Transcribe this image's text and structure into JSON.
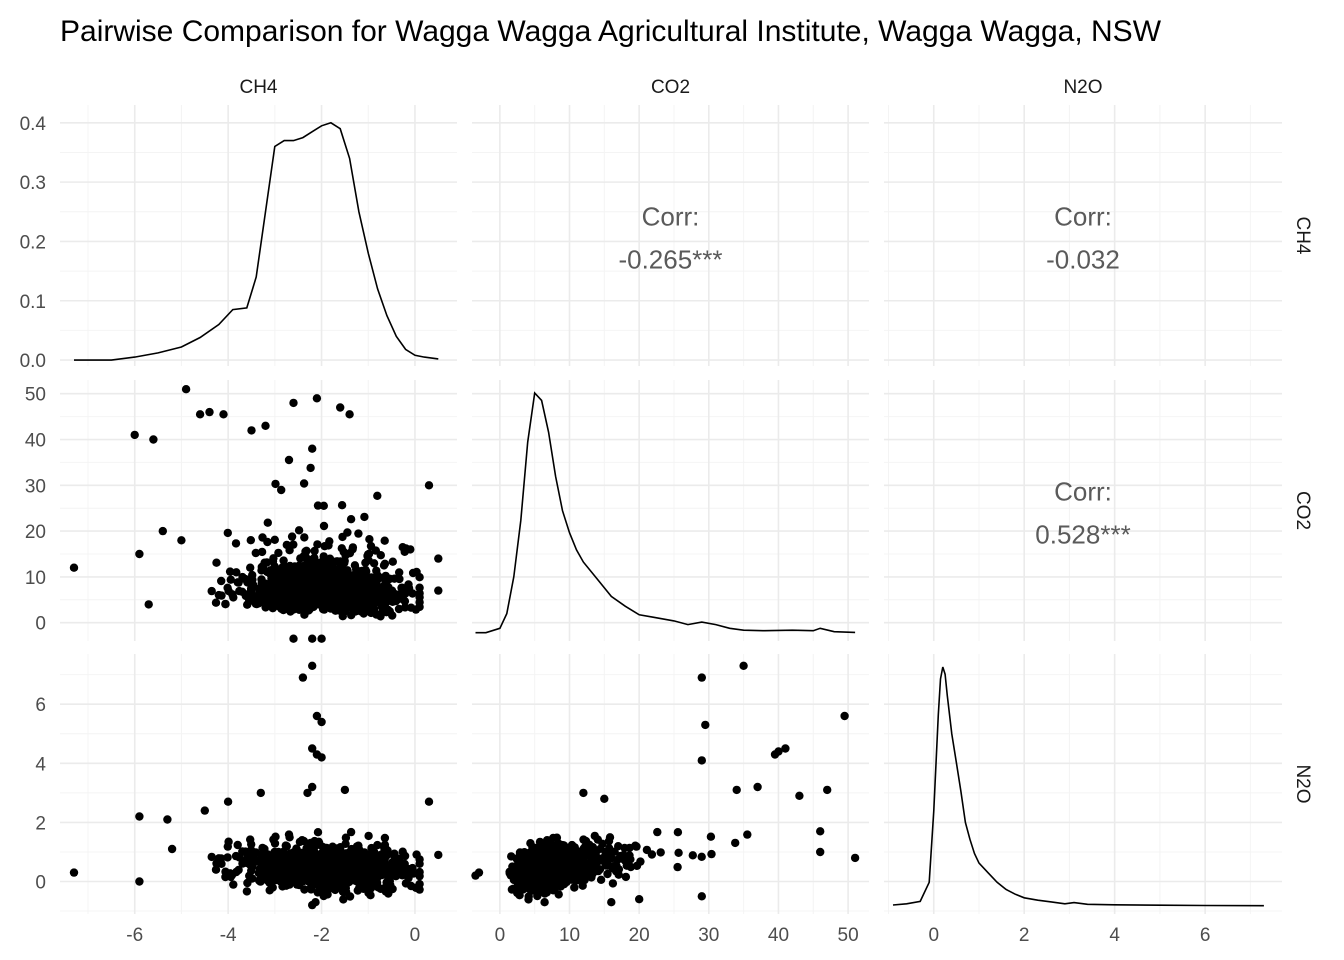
{
  "chart_data": {
    "type": "scatter",
    "title": "Pairwise Comparison for Wagga Wagga Agricultural Institute, Wagga Wagga, NSW",
    "variables": [
      "CH4",
      "CO2",
      "N2O"
    ],
    "axes": {
      "CH4": {
        "range": [
          -7.6,
          0.9
        ],
        "ticks": [
          -6,
          -4,
          -2,
          0
        ],
        "tick_labels": [
          "-6",
          "-4",
          "-2",
          "0"
        ]
      },
      "CO2": {
        "range": [
          -4,
          53
        ],
        "ticks": [
          0,
          10,
          20,
          30,
          40,
          50
        ],
        "tick_labels": [
          "0",
          "10",
          "20",
          "30",
          "40",
          "50"
        ]
      },
      "N2O": {
        "range": [
          -1.1,
          7.7
        ],
        "ticks": [
          0,
          2,
          4,
          6
        ],
        "tick_labels": [
          "0",
          "2",
          "4",
          "6"
        ]
      }
    },
    "density_axis": {
      "range": [
        -0.01,
        0.43
      ],
      "ticks": [
        0.0,
        0.1,
        0.2,
        0.3,
        0.4
      ],
      "tick_labels": [
        "0.0",
        "0.1",
        "0.2",
        "0.3",
        "0.4"
      ]
    },
    "densities": {
      "CH4": {
        "x": [
          -7.3,
          -6.5,
          -6.0,
          -5.5,
          -5.0,
          -4.6,
          -4.2,
          -3.9,
          -3.6,
          -3.4,
          -3.2,
          -3.0,
          -2.8,
          -2.6,
          -2.4,
          -2.2,
          -2.0,
          -1.8,
          -1.6,
          -1.4,
          -1.2,
          -1.0,
          -0.8,
          -0.6,
          -0.4,
          -0.2,
          0.0,
          0.2,
          0.5
        ],
        "y": [
          0.0,
          0.0,
          0.005,
          0.012,
          0.022,
          0.038,
          0.06,
          0.085,
          0.088,
          0.14,
          0.25,
          0.36,
          0.37,
          0.37,
          0.375,
          0.385,
          0.395,
          0.4,
          0.39,
          0.34,
          0.25,
          0.18,
          0.12,
          0.075,
          0.04,
          0.018,
          0.008,
          0.005,
          0.002
        ]
      },
      "CO2": {
        "x": [
          -3.5,
          -2,
          0,
          1,
          2,
          3,
          4,
          5,
          6,
          7,
          8,
          9,
          10,
          11,
          12,
          14,
          16,
          18,
          20,
          22,
          25,
          27,
          29,
          31,
          33,
          35,
          38,
          42,
          45,
          46,
          48,
          51
        ],
        "y": [
          0.002,
          0.002,
          0.02,
          0.08,
          0.23,
          0.46,
          0.78,
          0.98,
          0.95,
          0.82,
          0.64,
          0.5,
          0.41,
          0.34,
          0.29,
          0.22,
          0.15,
          0.11,
          0.075,
          0.065,
          0.05,
          0.035,
          0.045,
          0.035,
          0.02,
          0.012,
          0.01,
          0.012,
          0.01,
          0.02,
          0.006,
          0.003
        ]
      },
      "N2O": {
        "x": [
          -0.9,
          -0.6,
          -0.3,
          -0.1,
          0.0,
          0.1,
          0.15,
          0.2,
          0.25,
          0.3,
          0.4,
          0.5,
          0.6,
          0.7,
          0.8,
          0.9,
          1.0,
          1.2,
          1.4,
          1.6,
          1.8,
          2.0,
          2.3,
          2.6,
          2.9,
          3.1,
          3.4,
          4.0,
          5.0,
          6.0,
          7.3
        ],
        "y": [
          0.005,
          0.01,
          0.02,
          0.1,
          0.4,
          0.8,
          0.95,
          1.0,
          0.97,
          0.88,
          0.72,
          0.6,
          0.48,
          0.35,
          0.28,
          0.22,
          0.18,
          0.14,
          0.1,
          0.07,
          0.05,
          0.035,
          0.025,
          0.018,
          0.01,
          0.015,
          0.008,
          0.006,
          0.004,
          0.003,
          0.002
        ]
      }
    },
    "correlations": [
      {
        "row": "CH4",
        "col": "CO2",
        "label": "Corr:",
        "value": "-0.265***"
      },
      {
        "row": "CH4",
        "col": "N2O",
        "label": "Corr:",
        "value": "-0.032"
      },
      {
        "row": "CO2",
        "col": "N2O",
        "label": "Corr:",
        "value": "0.528***"
      }
    ],
    "scatter_outliers": {
      "CH4_CO2": [
        [
          -7.3,
          12
        ],
        [
          -6.0,
          41
        ],
        [
          -5.6,
          40
        ],
        [
          -4.9,
          51
        ],
        [
          -4.6,
          45.5
        ],
        [
          -4.4,
          46
        ],
        [
          -4.1,
          45.5
        ],
        [
          -3.5,
          42
        ],
        [
          -3.2,
          43
        ],
        [
          -2.6,
          48
        ],
        [
          -2.1,
          49
        ],
        [
          -2.2,
          38
        ],
        [
          -1.6,
          47
        ],
        [
          -1.4,
          45.5
        ],
        [
          -2.2,
          -3.5
        ],
        [
          -2.6,
          -3.5
        ],
        [
          -2.0,
          -3.5
        ],
        [
          0.3,
          30
        ],
        [
          0.5,
          14
        ],
        [
          0.5,
          7
        ],
        [
          -0.1,
          16
        ],
        [
          -5.9,
          15
        ],
        [
          -5.7,
          4
        ],
        [
          -5.4,
          20
        ],
        [
          -5.0,
          18
        ]
      ],
      "CH4_N2O": [
        [
          -7.3,
          0.3
        ],
        [
          -5.9,
          2.2
        ],
        [
          -5.9,
          0.0
        ],
        [
          -5.3,
          2.1
        ],
        [
          -4.5,
          2.4
        ],
        [
          -4.0,
          2.7
        ],
        [
          -2.2,
          7.3
        ],
        [
          -2.4,
          6.9
        ],
        [
          -2.1,
          5.6
        ],
        [
          -2.0,
          5.4
        ],
        [
          -2.2,
          4.5
        ],
        [
          -2.1,
          4.3
        ],
        [
          -2.0,
          4.2
        ],
        [
          -2.2,
          3.2
        ],
        [
          -2.3,
          3.0
        ],
        [
          -1.5,
          3.1
        ],
        [
          -3.3,
          3.0
        ],
        [
          -2.2,
          -0.8
        ],
        [
          0.3,
          2.7
        ],
        [
          0.5,
          0.9
        ],
        [
          -5.2,
          1.1
        ]
      ],
      "CO2_N2O": [
        [
          29,
          6.9
        ],
        [
          35,
          7.3
        ],
        [
          29.5,
          5.3
        ],
        [
          49.5,
          5.6
        ],
        [
          41,
          4.5
        ],
        [
          40,
          4.4
        ],
        [
          39.5,
          4.3
        ],
        [
          29,
          4.1
        ],
        [
          37,
          3.2
        ],
        [
          34,
          3.1
        ],
        [
          43,
          2.9
        ],
        [
          47,
          3.1
        ],
        [
          46,
          1.7
        ],
        [
          46,
          1.0
        ],
        [
          51,
          0.8
        ],
        [
          -3.5,
          0.2
        ],
        [
          -3,
          0.3
        ],
        [
          16,
          -0.7
        ],
        [
          20,
          -0.6
        ],
        [
          29,
          -0.5
        ],
        [
          12,
          3.0
        ],
        [
          15,
          2.8
        ]
      ]
    }
  }
}
